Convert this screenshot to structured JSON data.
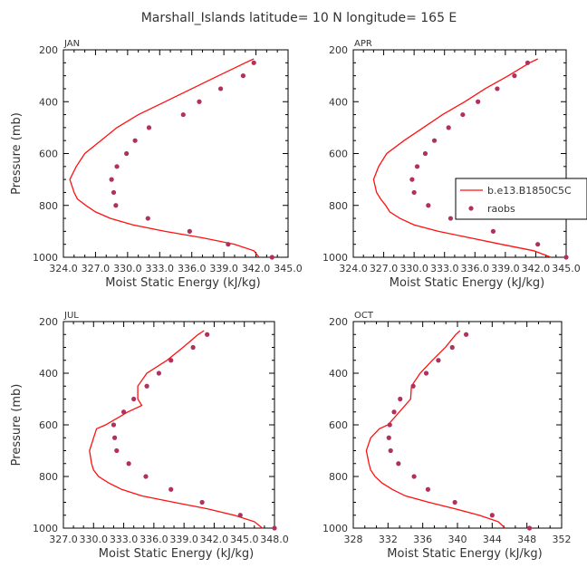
{
  "figure": {
    "title": "Marshall_Islands  latitude= 10 N longitude= 165 E"
  },
  "legend": {
    "model_label": "b.e13.B1850C5C",
    "obs_label": "raobs"
  },
  "colors": {
    "model_line": "#ff1010",
    "obs_marker": "#b03060",
    "axis": "#000000"
  },
  "chart_data": [
    {
      "type": "line",
      "panel_label": "JAN",
      "xlabel": "Moist Static Energy (kJ/kg)",
      "ylabel": "Pressure (mb)",
      "xlim": [
        324.0,
        345.0
      ],
      "ylim": [
        1000,
        200
      ],
      "x_ticks": [
        324.0,
        327.0,
        330.0,
        333.0,
        336.0,
        339.0,
        342.0,
        345.0
      ],
      "x_tick_labels": [
        "324.0",
        "327.0",
        "330.0",
        "333.0",
        "336.0",
        "339.0",
        "342.0",
        "345.0"
      ],
      "y_ticks": [
        200,
        400,
        600,
        800,
        1000
      ],
      "y_tick_labels": [
        "200",
        "400",
        "600",
        "800",
        "1000"
      ],
      "series": [
        {
          "kind": "line",
          "pressure": [
            1000,
            975,
            950,
            925,
            900,
            875,
            850,
            825,
            800,
            775,
            750,
            700,
            650,
            600,
            550,
            500,
            450,
            400,
            350,
            300,
            250,
            235
          ],
          "mse": [
            342.3,
            341.8,
            340.0,
            337.0,
            333.5,
            330.5,
            328.4,
            327.0,
            326.1,
            325.3,
            325.0,
            324.6,
            325.2,
            326.0,
            327.5,
            329.0,
            331.0,
            333.5,
            336.0,
            338.5,
            341.0,
            341.8
          ]
        },
        {
          "kind": "scatter",
          "pressure": [
            1000,
            950,
            900,
            850,
            800,
            750,
            700,
            650,
            600,
            550,
            500,
            450,
            400,
            350,
            300,
            250
          ],
          "mse": [
            343.5,
            339.4,
            335.8,
            331.9,
            328.9,
            328.7,
            328.5,
            329.0,
            329.9,
            330.7,
            332.0,
            335.2,
            336.7,
            338.7,
            340.8,
            341.8
          ]
        }
      ]
    },
    {
      "type": "line",
      "panel_label": "APR",
      "xlabel": "Moist Static Energy (kJ/kg)",
      "ylabel": "",
      "xlim": [
        324.0,
        345.0
      ],
      "ylim": [
        1000,
        200
      ],
      "x_ticks": [
        324.0,
        327.0,
        330.0,
        333.0,
        336.0,
        339.0,
        342.0,
        345.0
      ],
      "x_tick_labels": [
        "324.0",
        "327.0",
        "330.0",
        "333.0",
        "336.0",
        "339.0",
        "342.0",
        "345.0"
      ],
      "y_ticks": [
        200,
        400,
        600,
        800,
        1000
      ],
      "y_tick_labels": [
        "200",
        "400",
        "600",
        "800",
        "1000"
      ],
      "series": [
        {
          "kind": "line",
          "pressure": [
            1000,
            975,
            950,
            925,
            900,
            875,
            850,
            825,
            800,
            775,
            750,
            700,
            650,
            600,
            550,
            500,
            450,
            400,
            350,
            300,
            250,
            235
          ],
          "mse": [
            343.5,
            341.8,
            338.6,
            335.5,
            332.4,
            330.0,
            328.6,
            327.6,
            327.2,
            326.7,
            326.3,
            326.0,
            326.5,
            327.3,
            329.0,
            330.9,
            332.8,
            335.0,
            337.0,
            339.3,
            341.4,
            342.2
          ]
        },
        {
          "kind": "scatter",
          "pressure": [
            1000,
            950,
            900,
            850,
            800,
            750,
            700,
            650,
            600,
            550,
            500,
            450,
            400,
            350,
            300,
            250
          ],
          "mse": [
            345.0,
            342.2,
            337.8,
            333.6,
            331.4,
            330.0,
            329.8,
            330.3,
            331.1,
            332.0,
            333.4,
            334.8,
            336.3,
            338.2,
            339.9,
            341.2
          ]
        }
      ]
    },
    {
      "type": "line",
      "panel_label": "JUL",
      "xlabel": "Moist Static Energy (kJ/kg)",
      "ylabel": "Pressure (mb)",
      "xlim": [
        327.0,
        348.0
      ],
      "ylim": [
        1000,
        200
      ],
      "x_ticks": [
        327.0,
        330.0,
        333.0,
        336.0,
        339.0,
        342.0,
        345.0,
        348.0
      ],
      "x_tick_labels": [
        "327.0",
        "330.0",
        "333.0",
        "336.0",
        "339.0",
        "342.0",
        "345.0",
        "348.0"
      ],
      "y_ticks": [
        200,
        400,
        600,
        800,
        1000
      ],
      "y_tick_labels": [
        "200",
        "400",
        "600",
        "800",
        "1000"
      ],
      "series": [
        {
          "kind": "line",
          "pressure": [
            1000,
            975,
            950,
            925,
            900,
            875,
            850,
            825,
            800,
            775,
            750,
            700,
            650,
            615,
            600,
            550,
            525,
            500,
            450,
            400,
            350,
            300,
            250,
            235
          ],
          "mse": [
            346.8,
            346.0,
            344.0,
            341.3,
            338.0,
            334.8,
            332.8,
            331.5,
            330.5,
            330.0,
            329.8,
            329.6,
            330.0,
            330.3,
            331.2,
            333.4,
            334.8,
            334.4,
            334.4,
            335.3,
            337.3,
            338.9,
            340.4,
            341.0
          ]
        },
        {
          "kind": "scatter",
          "pressure": [
            1000,
            950,
            900,
            850,
            800,
            750,
            700,
            650,
            600,
            550,
            500,
            450,
            400,
            350,
            300,
            250
          ],
          "mse": [
            348.0,
            344.6,
            340.8,
            337.7,
            335.2,
            333.5,
            332.3,
            332.1,
            332.0,
            333.0,
            334.0,
            335.3,
            336.5,
            337.7,
            339.9,
            341.3
          ]
        }
      ]
    },
    {
      "type": "line",
      "panel_label": "OCT",
      "xlabel": "Moist Static Energy (kJ/kg)",
      "ylabel": "",
      "xlim": [
        328,
        352
      ],
      "ylim": [
        1000,
        200
      ],
      "x_ticks": [
        328,
        332,
        336,
        340,
        344,
        348,
        352
      ],
      "x_tick_labels": [
        "328",
        "332",
        "336",
        "340",
        "344",
        "348",
        "352"
      ],
      "y_ticks": [
        200,
        400,
        600,
        800,
        1000
      ],
      "y_tick_labels": [
        "200",
        "400",
        "600",
        "800",
        "1000"
      ],
      "series": [
        {
          "kind": "line",
          "pressure": [
            1000,
            975,
            950,
            925,
            900,
            875,
            850,
            825,
            800,
            775,
            750,
            700,
            650,
            615,
            600,
            550,
            500,
            450,
            400,
            350,
            300,
            250,
            235
          ],
          "mse": [
            345.5,
            344.7,
            342.5,
            339.7,
            336.7,
            334.0,
            332.5,
            331.3,
            330.5,
            330.0,
            329.8,
            329.5,
            330.0,
            331.0,
            332.0,
            333.3,
            334.6,
            334.7,
            335.7,
            337.1,
            338.6,
            339.8,
            340.3
          ]
        },
        {
          "kind": "scatter",
          "pressure": [
            1000,
            950,
            900,
            850,
            800,
            750,
            700,
            650,
            600,
            550,
            500,
            450,
            400,
            350,
            300,
            250
          ],
          "mse": [
            348.3,
            344.0,
            339.7,
            336.6,
            335.0,
            333.2,
            332.3,
            332.1,
            332.2,
            332.7,
            333.4,
            334.9,
            336.4,
            337.8,
            339.4,
            341.0
          ]
        }
      ]
    }
  ]
}
